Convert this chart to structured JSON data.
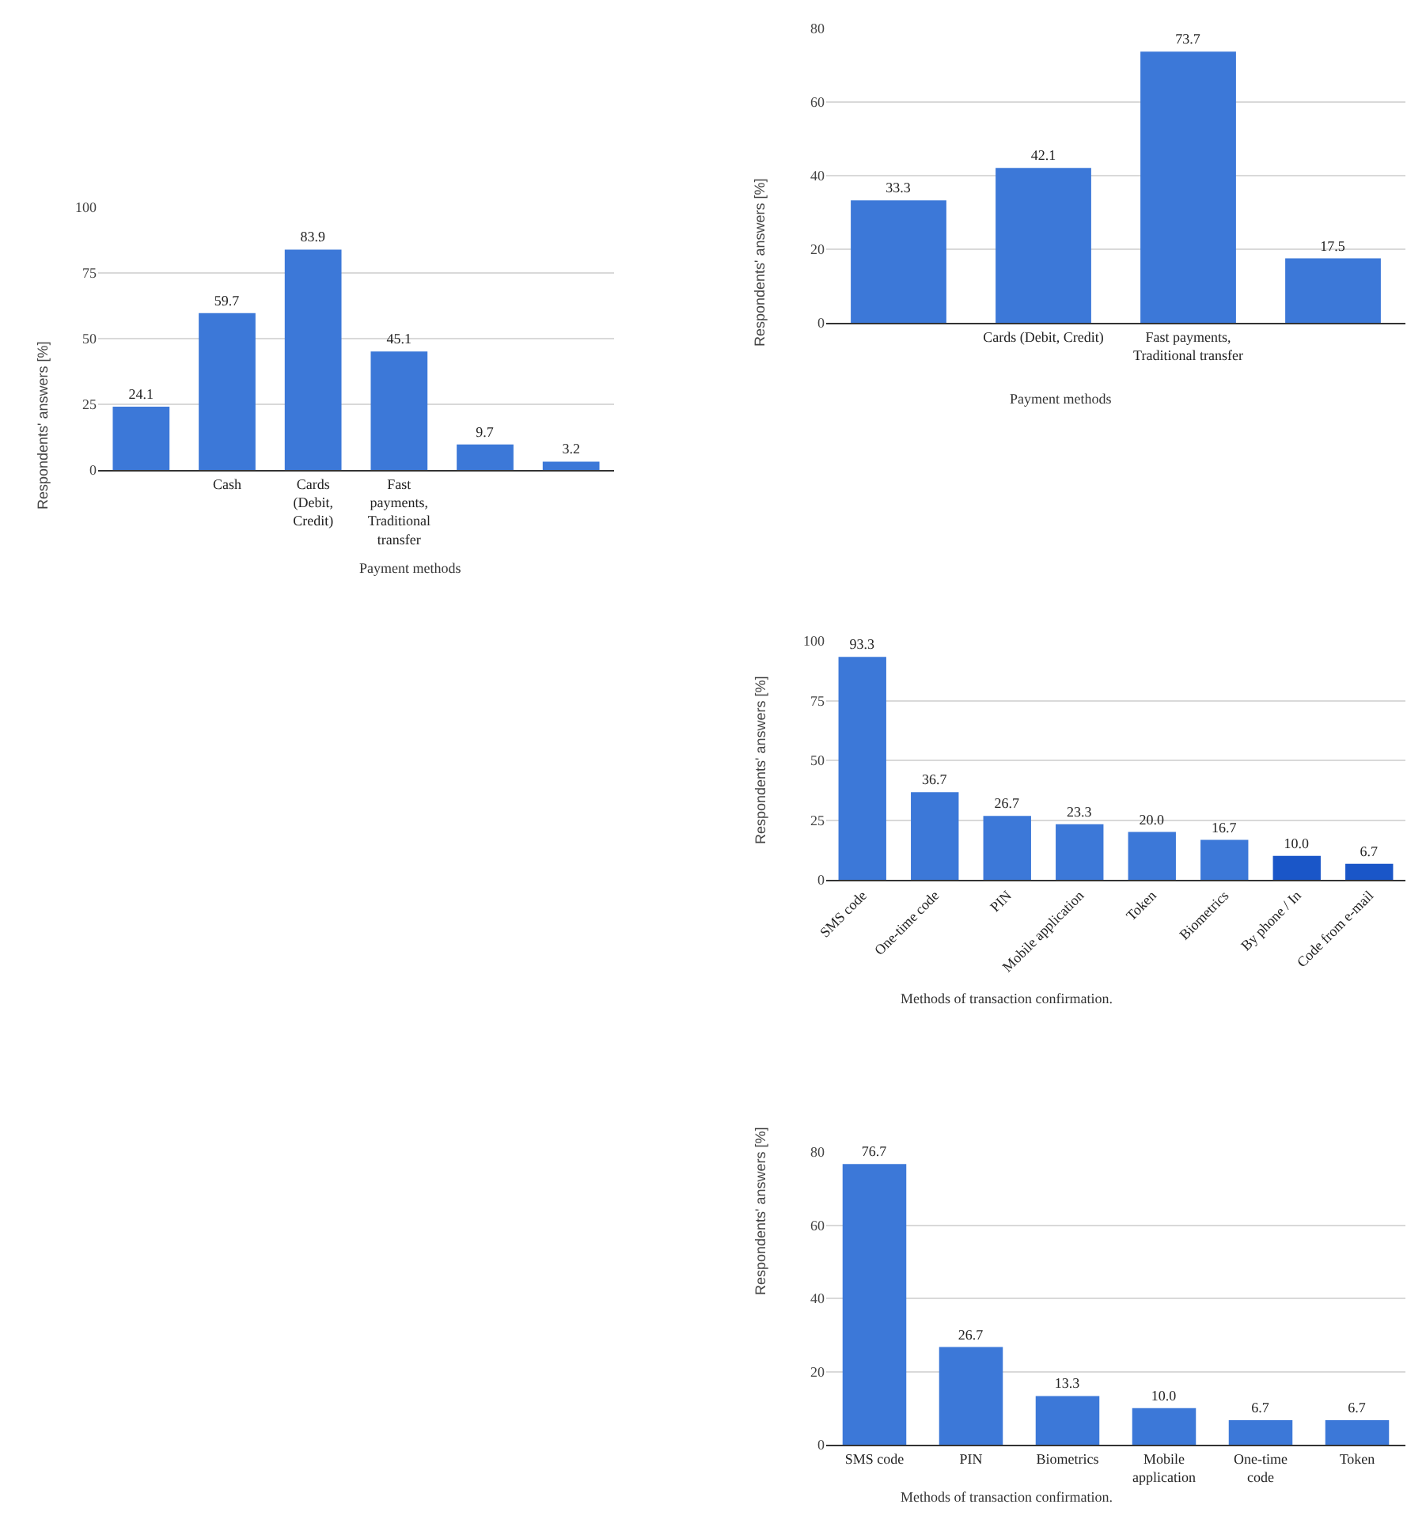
{
  "chart_data": [
    {
      "type": "bar",
      "xlabel": "Payment methods",
      "ylabel": "Respondents' answers [%]",
      "categories": [
        null,
        "Cash",
        "Cards (Debit, Credit)",
        "Fast payments, Traditional transfer",
        null,
        null
      ],
      "values": [
        24.1,
        59.7,
        83.9,
        45.1,
        9.7,
        3.2
      ],
      "value_labels": [
        "24.1",
        "59.7",
        "83.9",
        "45.1",
        "9.7",
        "3.2"
      ],
      "color": "#3c78d8",
      "ylim": [
        0,
        100
      ],
      "yticks": [
        0,
        25,
        50,
        75,
        100
      ],
      "grid": "y",
      "legend": false
    },
    {
      "type": "bar",
      "xlabel": "Payment methods",
      "ylabel": "Respondents' answers [%]",
      "categories": [
        null,
        "Cards (Debit, Credit)",
        "Fast payments, Traditional transfer",
        null
      ],
      "values": [
        33.3,
        42.1,
        73.7,
        17.5
      ],
      "value_labels": [
        "33.3",
        "42.1",
        "73.7",
        "17.5"
      ],
      "color": "#3c78d8",
      "ylim": [
        0,
        80
      ],
      "yticks": [
        0,
        20,
        40,
        60,
        80
      ],
      "grid": "y",
      "legend": false
    },
    {
      "type": "bar",
      "xlabel": "Methods of transaction confirmation.",
      "ylabel": "Respondents' answers [%]",
      "categories": [
        "SMS code",
        "One-time code",
        "PIN",
        "Mobile application",
        "Token",
        "Biometrics",
        "By phone / In",
        "Code from e-mail"
      ],
      "values": [
        93.3,
        36.7,
        26.7,
        23.3,
        20.0,
        16.7,
        10.0,
        6.7
      ],
      "value_labels": [
        "93.3",
        "36.7",
        "26.7",
        "23.3",
        "20.0",
        "16.7",
        "10.0",
        "6.7"
      ],
      "colors": [
        "#3c78d8",
        "#3c78d8",
        "#3c78d8",
        "#3c78d8",
        "#3c78d8",
        "#3c78d8",
        "#1a56c8",
        "#1a56c8"
      ],
      "ylim": [
        0,
        100
      ],
      "yticks": [
        0,
        25,
        50,
        75,
        100
      ],
      "grid": "y",
      "legend": false
    },
    {
      "type": "bar",
      "xlabel": "Methods of transaction confirmation.",
      "ylabel": "Respondents' answers [%]",
      "categories": [
        "SMS code",
        "PIN",
        "Biometrics",
        "Mobile application",
        "One-time code",
        "Token"
      ],
      "values": [
        76.7,
        26.7,
        13.3,
        10.0,
        6.7,
        6.7
      ],
      "value_labels": [
        "76.7",
        "26.7",
        "13.3",
        "10.0",
        "6.7",
        "6.7"
      ],
      "color": "#3c78d8",
      "ylim": [
        0,
        80
      ],
      "yticks": [
        0,
        20,
        40,
        60,
        80
      ],
      "grid": "y",
      "legend": false
    }
  ]
}
